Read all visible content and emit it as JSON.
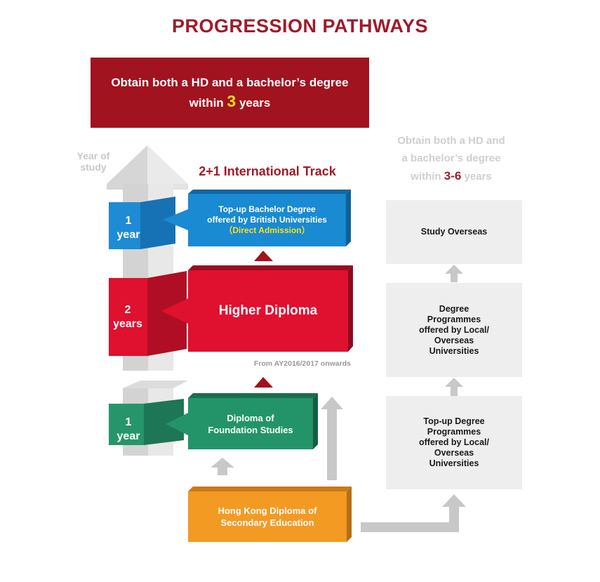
{
  "title": "PROGRESSION PATHWAYS",
  "banner": {
    "line1": "Obtain both a HD and a bachelor’s degree",
    "line2_prefix": "within ",
    "line2_number": "3",
    "line2_suffix": " years"
  },
  "alt_pathway_heading": {
    "line1": "Obtain both a HD and",
    "line2": "a bachelor’s degree",
    "line3_prefix": "within ",
    "line3_number": "3-6",
    "line3_suffix": " years"
  },
  "year_axis": {
    "label_line1": "Year of",
    "label_line2": "study"
  },
  "year_blocks": [
    {
      "number": "1",
      "unit": "year"
    },
    {
      "number": "2",
      "unit": "years"
    },
    {
      "number": "1",
      "unit": "year"
    }
  ],
  "international_track": {
    "title": "2+1 International Track",
    "topup": {
      "line1": "Top-up Bachelor Degree",
      "line2": "offered by British Universities",
      "note": "（Direct Admission）"
    },
    "higher_diploma": "Higher Diploma",
    "effective_note": "From AY2016/2017 onwards",
    "foundation": {
      "line1": "Diploma of",
      "line2": "Foundation Studies"
    },
    "hkdse": {
      "line1": "Hong Kong Diploma of",
      "line2": "Secondary Education"
    }
  },
  "alt_pathway": {
    "study_overseas": "Study Overseas",
    "degree_programmes": {
      "line1": "Degree",
      "line2": "Programmes",
      "line3": "offered by Local/",
      "line4": "Overseas",
      "line5": "Universities"
    },
    "topup_degree": {
      "line1": "Top-up Degree",
      "line2": "Programmes",
      "line3": "offered by Local/",
      "line4": "Overseas",
      "line5": "Universities"
    }
  },
  "colors": {
    "maroon": "#a0131f",
    "blue": "#1a8ad2",
    "red": "#e0102f",
    "green": "#23946a",
    "orange": "#f39a23",
    "grey_box": "#eeeeee",
    "highlight_yellow": "#ffde17"
  }
}
